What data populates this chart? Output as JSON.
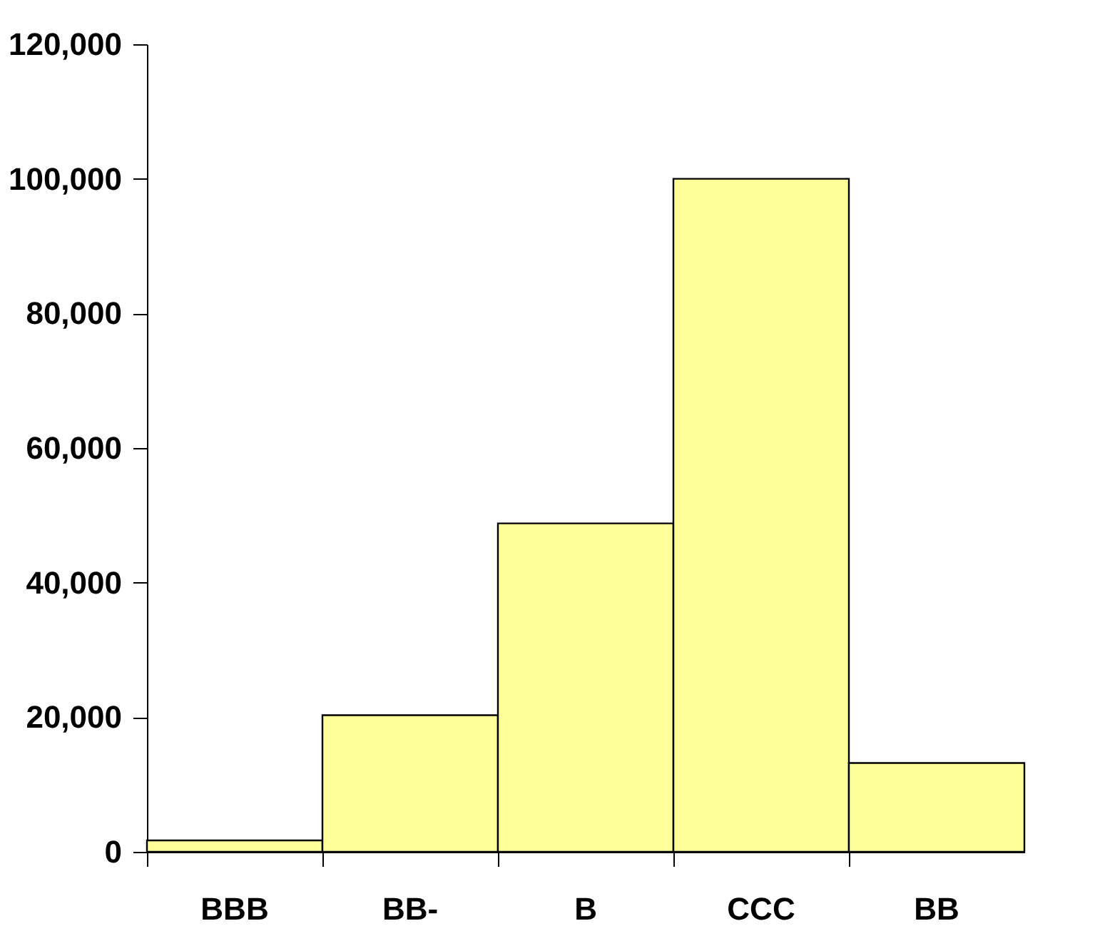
{
  "chart_data": {
    "type": "bar",
    "categories": [
      "BBB",
      "BB-",
      "B",
      "CCC",
      "BB"
    ],
    "values": [
      1700,
      20300,
      48800,
      100000,
      13200
    ],
    "color": "#ffff99",
    "ylim": [
      0,
      120000
    ],
    "yticks": [
      0,
      {
        "value": 20000,
        "label": "20,000"
      },
      {
        "value": 40000,
        "label": "40,000"
      },
      {
        "value": 60000,
        "label": "60,000"
      },
      {
        "value": 80000,
        "label": "80,000"
      },
      {
        "value": 100000,
        "label": "100,000"
      },
      {
        "value": 120000,
        "label": "120,000"
      }
    ],
    "grid": false
  }
}
